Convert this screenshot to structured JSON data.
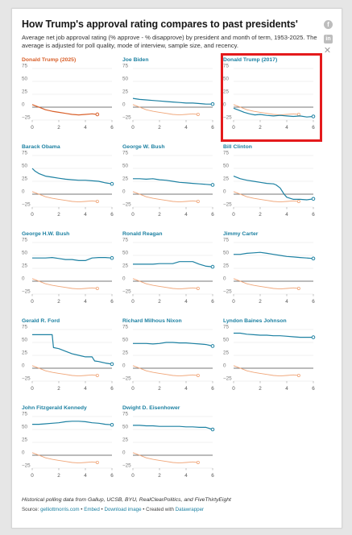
{
  "header": {
    "title": "How Trump's approval rating compares to past presidents'",
    "subtitle": "Average net job approval rating (% approve - % disapprove) by president and month of term, 1953-2025. The average is adjusted for poll quality, mode of interview, sample size, and recency."
  },
  "share": {
    "facebook_icon": "f",
    "linkedin_icon": "in",
    "close_icon": "✕"
  },
  "footer": {
    "note": "Historical polling data from Gallup, UCSB, BYU, RealClearPolitics, and FiveThirtyEight",
    "source_label": "Source:",
    "source_link": "gelliottmorris.com",
    "sep1": "•",
    "embed": "Embed",
    "sep2": "•",
    "download": "Download image",
    "sep3": "•",
    "created": "Created with",
    "datawrapper": "Datawrapper"
  },
  "colors": {
    "blue": "#1d81a2",
    "orange": "#d9602a",
    "orange_light": "#f0a679",
    "baseline": "#777777",
    "grid": "#e3e3e3",
    "highlight": "#e41a1c"
  },
  "axes": {
    "y_ticks": [
      "75",
      "50",
      "25",
      "0",
      "−25"
    ],
    "x_ticks": [
      "0",
      "2",
      "4",
      "6"
    ]
  },
  "chart_data": {
    "type": "line",
    "x_axis": {
      "label": "",
      "range": [
        0,
        6
      ],
      "ticks": [
        0,
        2,
        4,
        6
      ]
    },
    "y_axis": {
      "label": "",
      "range": [
        -25,
        75
      ],
      "ticks": [
        75,
        50,
        25,
        0,
        -25
      ]
    },
    "reference_line": 0,
    "comparison_series": "Donald Trump (2025)",
    "panels": [
      {
        "name": "Donald Trump (2025)",
        "color": "#d9602a",
        "x": [
          0,
          0.3,
          0.6,
          1.0,
          1.5,
          2.0,
          2.5,
          3.0,
          3.5,
          4.0,
          4.5,
          4.9
        ],
        "y": [
          5,
          2,
          -1,
          -5,
          -8,
          -10,
          -12,
          -14,
          -15,
          -14,
          -13,
          -14
        ]
      },
      {
        "name": "Joe Biden",
        "x": [
          0,
          0.5,
          1.0,
          1.5,
          2.0,
          2.5,
          3.0,
          3.5,
          4.0,
          4.5,
          5.0,
          5.5,
          6.0
        ],
        "y": [
          17,
          15,
          14,
          13,
          12,
          11,
          10,
          9,
          8,
          8,
          7,
          6,
          6
        ]
      },
      {
        "name": "Donald Trump (2017)",
        "x": [
          0,
          0.4,
          0.8,
          1.2,
          1.6,
          2.0,
          2.5,
          3.0,
          3.5,
          4.0,
          4.5,
          5.0,
          5.5,
          6.0
        ],
        "y": [
          -2,
          -6,
          -10,
          -13,
          -15,
          -14,
          -16,
          -17,
          -16,
          -17,
          -18,
          -17,
          -19,
          -18
        ]
      },
      {
        "name": "Barack Obama",
        "x": [
          0,
          0.2,
          0.5,
          1.0,
          1.5,
          2.0,
          2.5,
          3.0,
          3.5,
          4.0,
          4.5,
          5.0,
          5.5,
          6.0
        ],
        "y": [
          50,
          45,
          40,
          35,
          33,
          31,
          29,
          28,
          27,
          27,
          26,
          25,
          22,
          20
        ]
      },
      {
        "name": "George W. Bush",
        "x": [
          0,
          0.5,
          1.0,
          1.5,
          2.0,
          2.5,
          3.0,
          3.5,
          4.0,
          4.5,
          5.0,
          5.5,
          6.0
        ],
        "y": [
          30,
          30,
          29,
          30,
          28,
          27,
          25,
          23,
          22,
          21,
          20,
          19,
          18
        ]
      },
      {
        "name": "Bill Clinton",
        "x": [
          0,
          0.5,
          1.0,
          1.5,
          2.0,
          2.5,
          3.0,
          3.2,
          3.5,
          3.8,
          4.0,
          4.5,
          5.0,
          5.5,
          6.0
        ],
        "y": [
          35,
          30,
          27,
          25,
          23,
          21,
          20,
          18,
          12,
          0,
          -6,
          -10,
          -10,
          -11,
          -9
        ]
      },
      {
        "name": "George H.W. Bush",
        "x": [
          0,
          0.5,
          1.0,
          1.5,
          2.0,
          2.5,
          3.0,
          3.5,
          4.0,
          4.5,
          5.0,
          5.5,
          6.0
        ],
        "y": [
          45,
          45,
          45,
          46,
          44,
          42,
          42,
          40,
          40,
          45,
          46,
          46,
          45
        ]
      },
      {
        "name": "Ronald Reagan",
        "x": [
          0,
          0.5,
          1.0,
          1.5,
          2.0,
          2.5,
          3.0,
          3.5,
          4.0,
          4.5,
          5.0,
          5.5,
          6.0
        ],
        "y": [
          33,
          33,
          33,
          33,
          34,
          34,
          34,
          38,
          38,
          38,
          33,
          29,
          28
        ]
      },
      {
        "name": "Jimmy Carter",
        "x": [
          0,
          0.5,
          1.0,
          1.5,
          2.0,
          2.5,
          3.0,
          3.5,
          4.0,
          4.5,
          5.0,
          5.5,
          6.0
        ],
        "y": [
          52,
          52,
          54,
          55,
          56,
          54,
          52,
          50,
          48,
          47,
          46,
          45,
          44
        ]
      },
      {
        "name": "Gerald R. Ford",
        "x": [
          0,
          1.5,
          1.6,
          2.0,
          2.5,
          3.0,
          3.5,
          4.0,
          4.5,
          4.7,
          5.0,
          5.5,
          6.0
        ],
        "y": [
          65,
          65,
          40,
          38,
          33,
          28,
          25,
          22,
          22,
          14,
          13,
          10,
          8
        ]
      },
      {
        "name": "Richard Milhous Nixon",
        "x": [
          0,
          1.0,
          1.5,
          2.0,
          2.5,
          3.0,
          3.5,
          4.0,
          4.5,
          5.0,
          5.5,
          6.0
        ],
        "y": [
          48,
          48,
          47,
          48,
          50,
          50,
          49,
          49,
          48,
          47,
          46,
          43
        ]
      },
      {
        "name": "Lyndon Baines Johnson",
        "x": [
          0,
          0.5,
          1.0,
          1.5,
          2.0,
          2.5,
          3.0,
          3.5,
          4.0,
          4.5,
          5.0,
          5.5,
          6.0
        ],
        "y": [
          68,
          68,
          66,
          65,
          64,
          64,
          63,
          63,
          62,
          61,
          60,
          60,
          60
        ]
      },
      {
        "name": "John Fitzgerald Kennedy",
        "x": [
          0,
          0.5,
          1.0,
          1.5,
          2.0,
          2.5,
          3.0,
          3.5,
          4.0,
          4.5,
          5.0,
          5.5,
          6.0
        ],
        "y": [
          60,
          60,
          61,
          62,
          63,
          65,
          66,
          66,
          65,
          63,
          62,
          60,
          59
        ]
      },
      {
        "name": "Dwight D. Eisenhower",
        "x": [
          0,
          0.5,
          1.0,
          1.5,
          2.0,
          2.5,
          3.0,
          3.5,
          4.0,
          4.5,
          5.0,
          5.5,
          6.0
        ],
        "y": [
          58,
          58,
          57,
          57,
          56,
          56,
          56,
          56,
          55,
          55,
          54,
          54,
          50
        ]
      }
    ]
  }
}
